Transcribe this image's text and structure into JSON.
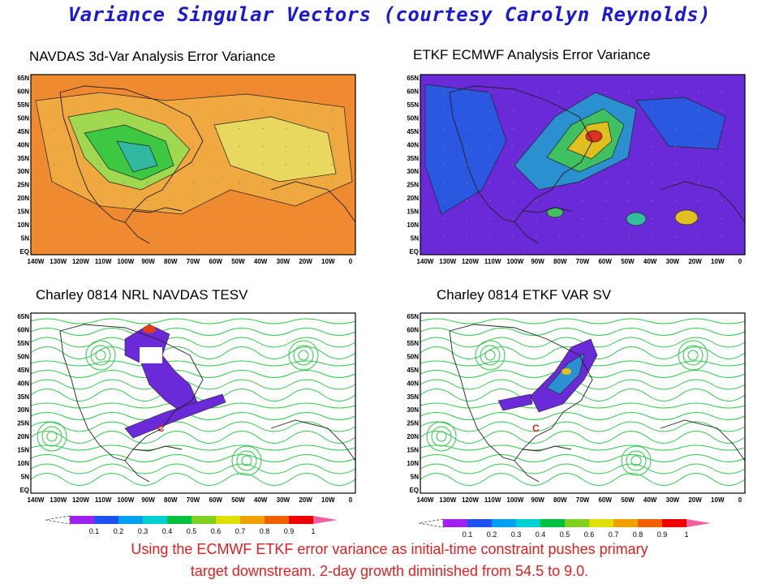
{
  "title": "Variance Singular Vectors (courtesy Carolyn Reynolds)",
  "panels": [
    {
      "title": "NAVDAS 3d-Var Analysis Error Variance",
      "y_ticks": [
        "65N",
        "60N",
        "55N",
        "50N",
        "45N",
        "40N",
        "35N",
        "30N",
        "25N",
        "20N",
        "15N",
        "10N",
        "5N",
        "EQ"
      ],
      "x_ticks": [
        "140W",
        "130W",
        "120W",
        "110W",
        "100W",
        "90W",
        "80W",
        "70W",
        "60W",
        "50W",
        "40W",
        "30W",
        "20W",
        "10W",
        "0"
      ],
      "colors": {
        "background": "#f08a30",
        "land_low": "#3cc840",
        "mid": "#e8d860"
      }
    },
    {
      "title": "ETKF ECMWF Analysis Error Variance",
      "y_ticks": [
        "65N",
        "60N",
        "55N",
        "50N",
        "45N",
        "40N",
        "35N",
        "30N",
        "25N",
        "20N",
        "15N",
        "10N",
        "5N",
        "EQ"
      ],
      "x_ticks": [
        "140W",
        "130W",
        "120W",
        "110W",
        "100W",
        "90W",
        "80W",
        "70W",
        "60W",
        "50W",
        "40W",
        "30W",
        "20W",
        "10W",
        "0"
      ],
      "colors": {
        "background": "#6a2ad8",
        "low": "#2a58e0"
      }
    },
    {
      "title": "Charley 0814 NRL NAVDAS TESV",
      "y_ticks": [
        "65N",
        "60N",
        "55N",
        "50N",
        "45N",
        "40N",
        "35N",
        "30N",
        "25N",
        "20N",
        "15N",
        "10N",
        "5N",
        "EQ"
      ],
      "x_ticks": [
        "140W",
        "130W",
        "120W",
        "110W",
        "100W",
        "90W",
        "80W",
        "70W",
        "60W",
        "50W",
        "40W",
        "30W",
        "20W",
        "10W",
        "0"
      ],
      "marker": "C",
      "colors": {
        "streamlines": "#2ec84a",
        "sv": "#6a2ad8"
      }
    },
    {
      "title": "Charley 0814 ETKF VAR SV",
      "y_ticks": [
        "65N",
        "60N",
        "55N",
        "50N",
        "45N",
        "40N",
        "35N",
        "30N",
        "25N",
        "20N",
        "15N",
        "10N",
        "5N",
        "EQ"
      ],
      "x_ticks": [
        "140W",
        "130W",
        "120W",
        "110W",
        "100W",
        "90W",
        "80W",
        "70W",
        "60W",
        "50W",
        "40W",
        "30W",
        "20W",
        "10W",
        "0"
      ],
      "marker": "C",
      "colors": {
        "streamlines": "#2ec84a",
        "sv": "#6a2ad8"
      }
    }
  ],
  "colorbar": {
    "labels": [
      "0.1",
      "0.2",
      "0.3",
      "0.4",
      "0.5",
      "0.6",
      "0.7",
      "0.8",
      "0.9",
      "1"
    ],
    "colors": [
      "#a020f0",
      "#2050f0",
      "#00a0f0",
      "#00d0d0",
      "#00c040",
      "#80d020",
      "#e0e000",
      "#f0a000",
      "#f06000",
      "#f00000",
      "#f060a0"
    ]
  },
  "caption": [
    "Using the ECMWF ETKF error variance as initial-time constraint pushes primary",
    "target downstream. 2-day growth diminished from 54.5 to 9.0."
  ]
}
